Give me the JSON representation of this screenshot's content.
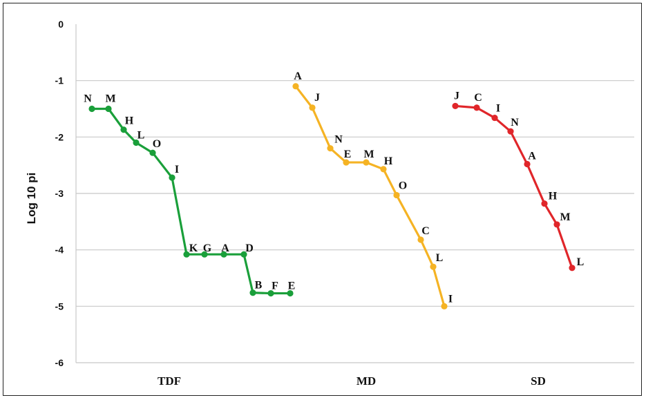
{
  "chart_data": {
    "type": "line",
    "ylabel": "Log 10 pi",
    "ylim": [
      -6,
      0
    ],
    "yticks": [
      "0",
      "-1",
      "-2",
      "-3",
      "-4",
      "-5",
      "-6"
    ],
    "grid": true,
    "categories": [
      "TDF",
      "MD",
      "SD"
    ],
    "series": [
      {
        "group": "TDF",
        "color": "#1a9f3a",
        "points": [
          {
            "label": "N",
            "y": -1.5
          },
          {
            "label": "M",
            "y": -1.5
          },
          {
            "label": "H",
            "y": -1.87
          },
          {
            "label": "L",
            "y": -2.1
          },
          {
            "label": "O",
            "y": -2.28
          },
          {
            "label": "I",
            "y": -2.72
          },
          {
            "label": "K",
            "y": -4.08
          },
          {
            "label": "G",
            "y": -4.08
          },
          {
            "label": "A",
            "y": -4.08
          },
          {
            "label": "D",
            "y": -4.08
          },
          {
            "label": "B",
            "y": -4.76
          },
          {
            "label": "F",
            "y": -4.77
          },
          {
            "label": "E",
            "y": -4.77
          }
        ]
      },
      {
        "group": "MD",
        "color": "#f5b324",
        "points": [
          {
            "label": "A",
            "y": -1.1
          },
          {
            "label": "J",
            "y": -1.48
          },
          {
            "label": "N",
            "y": -2.2
          },
          {
            "label": "E",
            "y": -2.45
          },
          {
            "label": "M",
            "y": -2.45
          },
          {
            "label": "H",
            "y": -2.57
          },
          {
            "label": "O",
            "y": -3.03
          },
          {
            "label": "C",
            "y": -3.82
          },
          {
            "label": "L",
            "y": -4.3
          },
          {
            "label": "I",
            "y": -5.0
          }
        ]
      },
      {
        "group": "SD",
        "color": "#e0262a",
        "points": [
          {
            "label": "J",
            "y": -1.45
          },
          {
            "label": "C",
            "y": -1.48
          },
          {
            "label": "I",
            "y": -1.66
          },
          {
            "label": "N",
            "y": -1.9
          },
          {
            "label": "A",
            "y": -2.48
          },
          {
            "label": "H",
            "y": -3.18
          },
          {
            "label": "M",
            "y": -3.55
          },
          {
            "label": "L",
            "y": -4.32
          }
        ]
      }
    ]
  }
}
